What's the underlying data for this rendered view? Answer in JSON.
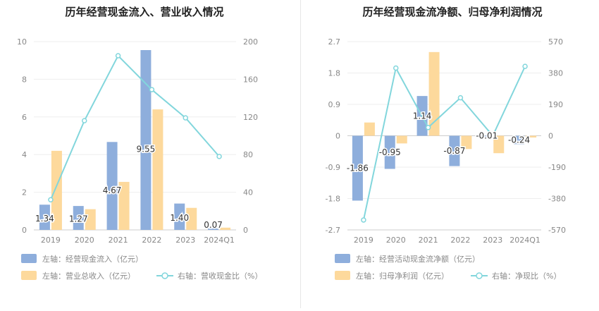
{
  "colors": {
    "bar_primary": "#8eaedc",
    "bar_secondary": "#fdd99c",
    "line": "#82d6dc",
    "axis_text": "#888888",
    "grid": "#eeeeee",
    "title": "#222222",
    "label": "#333333"
  },
  "chart_data": [
    {
      "type": "bar",
      "title": "历年经营现金流入、营业收入情况",
      "categories": [
        "2019",
        "2020",
        "2021",
        "2022",
        "2023",
        "2024Q1"
      ],
      "left_axis": {
        "ylim": [
          0,
          10
        ],
        "ticks": [
          "0",
          "2",
          "4",
          "6",
          "8",
          "10"
        ]
      },
      "right_axis": {
        "ylim": [
          0,
          200
        ],
        "ticks": [
          "0",
          "40",
          "80",
          "120",
          "160",
          "200"
        ]
      },
      "series": [
        {
          "name": "左轴：经营现金流入（亿元）",
          "kind": "bar",
          "axis": "left",
          "values": [
            1.34,
            1.27,
            4.67,
            9.55,
            1.4,
            0.07
          ],
          "labels": [
            "1.34",
            "1.27",
            "4.67",
            "9.55",
            "1.40",
            "0.07"
          ]
        },
        {
          "name": "左轴：营业总收入（亿元）",
          "kind": "bar",
          "axis": "left",
          "values": [
            4.2,
            1.1,
            2.55,
            6.4,
            1.17,
            0.12
          ]
        },
        {
          "name": "右轴：营收现金比（%）",
          "kind": "line",
          "axis": "right",
          "values": [
            32,
            116,
            185,
            149,
            119,
            78
          ]
        }
      ],
      "grid": true,
      "legend_placement": "bottom"
    },
    {
      "type": "bar",
      "title": "历年经营现金流净额、归母净利润情况",
      "categories": [
        "2019",
        "2020",
        "2021",
        "2022",
        "2023",
        "2024Q1"
      ],
      "left_axis": {
        "ylim": [
          -2.7,
          2.7
        ],
        "ticks": [
          "-2.7",
          "-1.8",
          "-0.9",
          "0",
          "0.9",
          "1.8",
          "2.7"
        ]
      },
      "right_axis": {
        "ylim": [
          -570,
          570
        ],
        "ticks": [
          "-570",
          "-380",
          "-190",
          "0",
          "190",
          "380",
          "570"
        ]
      },
      "series": [
        {
          "name": "左轴：经营活动现金流净额（亿元）",
          "kind": "bar",
          "axis": "left",
          "values": [
            -1.86,
            -0.95,
            1.14,
            -0.87,
            -0.01,
            -0.24
          ],
          "labels": [
            "-1.86",
            "-0.95",
            "1.14",
            "-0.87",
            "-0.01",
            "-0.24"
          ]
        },
        {
          "name": "左轴：归母净利润（亿元）",
          "kind": "bar",
          "axis": "left",
          "values": [
            0.38,
            -0.22,
            2.4,
            -0.38,
            -0.5,
            -0.05
          ]
        },
        {
          "name": "右轴：净现比（%）",
          "kind": "line",
          "axis": "right",
          "values": [
            -510,
            410,
            50,
            230,
            0,
            420
          ]
        }
      ],
      "grid": true,
      "legend_placement": "bottom"
    }
  ]
}
